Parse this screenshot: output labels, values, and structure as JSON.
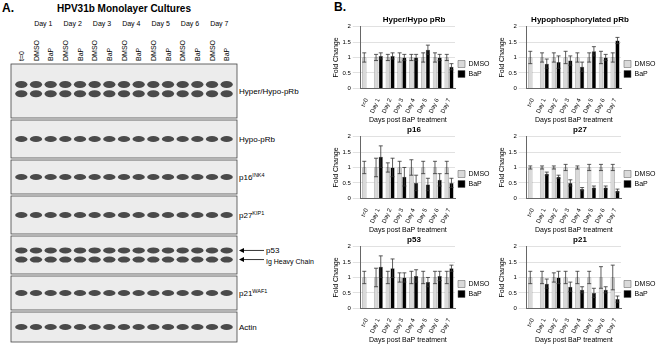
{
  "figure": {
    "panel_a": {
      "label": "A.",
      "title": "HPV31b Monolayer Cultures",
      "lanes": [
        "t=0",
        "DMSO",
        "BaP",
        "DMSO",
        "BaP",
        "DMSO",
        "BaP",
        "DMSO",
        "BaP",
        "DMSO",
        "BaP",
        "DMSO",
        "BaP",
        "DMSO",
        "BaP"
      ],
      "days": [
        "Day 1",
        "Day 2",
        "Day 3",
        "Day 4",
        "Day 5",
        "Day 6",
        "Day 7"
      ],
      "bands": [
        {
          "label": "Hyper/Hypo-pRb"
        },
        {
          "label": "Hypo-pRb"
        },
        {
          "label": "p16",
          "sup": "INK4"
        },
        {
          "label": "p27",
          "sup": "KIP1"
        },
        {
          "label": "p53",
          "second_label": "Ig Heavy Chain"
        },
        {
          "label": "p21",
          "sup": "WAF1"
        },
        {
          "label": "Actin"
        }
      ]
    },
    "panel_b_label": "B."
  },
  "chart_data": [
    {
      "type": "bar",
      "title": "Hyper/Hypo pRb",
      "categories": [
        "t=0",
        "Day 1",
        "Day 2",
        "Day 3",
        "Day 4",
        "Day 5",
        "Day 6",
        "Day 7"
      ],
      "x_label": "Days post BaP treatment",
      "y_label": "Fold Change",
      "ylim": [
        0,
        2
      ],
      "yticks": [
        0,
        0.5,
        1,
        1.5,
        2
      ],
      "grid": true,
      "legend": "right",
      "series": [
        {
          "name": "DMSO",
          "color": "#d9d9d9",
          "values": [
            1,
            1,
            1,
            1,
            1,
            1,
            1,
            1
          ],
          "errors": [
            0.15,
            0.1,
            0.1,
            0.15,
            0.1,
            0.15,
            0.15,
            0.1
          ]
        },
        {
          "name": "BaP",
          "color": "#000000",
          "values": [
            null,
            1.05,
            1.05,
            1.0,
            1.0,
            1.25,
            1.0,
            0.7
          ],
          "errors": [
            null,
            0.1,
            0.1,
            0.1,
            0.1,
            0.15,
            0.1,
            0.1
          ]
        }
      ]
    },
    {
      "type": "bar",
      "title": "Hypophosphorylated pRb",
      "categories": [
        "t=0",
        "Day 1",
        "Day 2",
        "Day 3",
        "Day 4",
        "Day 5",
        "Day 6",
        "Day 7"
      ],
      "x_label": "Days post BaP treatment",
      "y_label": "Fold Change",
      "ylim": [
        0,
        2
      ],
      "yticks": [
        0,
        0.5,
        1,
        1.5,
        2
      ],
      "grid": true,
      "legend": "right",
      "series": [
        {
          "name": "DMSO",
          "color": "#d9d9d9",
          "values": [
            1,
            1,
            1,
            1,
            1,
            1,
            1,
            1
          ],
          "errors": [
            0.2,
            0.15,
            0.15,
            0.2,
            0.15,
            0.15,
            0.2,
            0.15
          ]
        },
        {
          "name": "BaP",
          "color": "#000000",
          "values": [
            null,
            0.8,
            0.85,
            0.9,
            0.7,
            1.2,
            1.0,
            1.55
          ],
          "errors": [
            null,
            0.15,
            0.2,
            0.15,
            0.15,
            0.15,
            0.1,
            0.1
          ]
        }
      ]
    },
    {
      "type": "bar",
      "title": "p16",
      "categories": [
        "t=0",
        "Day 1",
        "Day 2",
        "Day 3",
        "Day 4",
        "Day 5",
        "Day 6",
        "Day 7"
      ],
      "x_label": "Days post BaP treatment",
      "y_label": "Fold Change",
      "ylim": [
        0,
        2
      ],
      "yticks": [
        0,
        0.5,
        1,
        1.5,
        2
      ],
      "grid": true,
      "legend": "right",
      "series": [
        {
          "name": "DMSO",
          "color": "#d9d9d9",
          "values": [
            1,
            1,
            1,
            1,
            1,
            1,
            1,
            1
          ],
          "errors": [
            0.2,
            0.3,
            0.15,
            0.2,
            0.25,
            0.2,
            0.2,
            0.2
          ]
        },
        {
          "name": "BaP",
          "color": "#000000",
          "values": [
            null,
            1.35,
            1.0,
            0.7,
            0.5,
            0.45,
            0.6,
            0.5
          ],
          "errors": [
            null,
            0.35,
            0.3,
            0.3,
            0.25,
            0.2,
            0.2,
            0.15
          ]
        }
      ]
    },
    {
      "type": "bar",
      "title": "p27",
      "categories": [
        "t=0",
        "Day 1",
        "Day 2",
        "Day 3",
        "Day 4",
        "Day 5",
        "Day 6",
        "Day 7"
      ],
      "x_label": "Days post BaP treatment",
      "y_label": "Fold Change",
      "ylim": [
        0,
        2
      ],
      "yticks": [
        0,
        0.5,
        1,
        1.5,
        2
      ],
      "grid": true,
      "legend": "right",
      "series": [
        {
          "name": "DMSO",
          "color": "#d9d9d9",
          "values": [
            1,
            1,
            1,
            1,
            1,
            1,
            1,
            1
          ],
          "errors": [
            0.05,
            0.05,
            0.05,
            0.1,
            0.05,
            0.1,
            0.1,
            0.1
          ]
        },
        {
          "name": "BaP",
          "color": "#000000",
          "values": [
            null,
            0.8,
            0.7,
            0.5,
            0.3,
            0.35,
            0.35,
            0.25
          ],
          "errors": [
            null,
            0.05,
            0.05,
            0.1,
            0.05,
            0.05,
            0.05,
            0.05
          ]
        }
      ]
    },
    {
      "type": "bar",
      "title": "p53",
      "categories": [
        "t=0",
        "Day 1",
        "Day 2",
        "Day 3",
        "Day 4",
        "Day 5",
        "Day 6",
        "Day 7"
      ],
      "x_label": "Days post BaP treatment",
      "y_label": "Fold Change",
      "ylim": [
        0,
        2
      ],
      "yticks": [
        0,
        0.5,
        1,
        1.5,
        2
      ],
      "grid": true,
      "legend": "right",
      "series": [
        {
          "name": "DMSO",
          "color": "#d9d9d9",
          "values": [
            1,
            1,
            1,
            1,
            1,
            1,
            1,
            1
          ],
          "errors": [
            0.2,
            0.3,
            0.2,
            0.15,
            0.2,
            0.2,
            0.2,
            0.2
          ]
        },
        {
          "name": "BaP",
          "color": "#000000",
          "values": [
            null,
            1.35,
            1.3,
            1.0,
            1.05,
            0.85,
            1.05,
            1.3
          ],
          "errors": [
            null,
            0.35,
            0.3,
            0.15,
            0.2,
            0.15,
            0.15,
            0.1
          ]
        }
      ]
    },
    {
      "type": "bar",
      "title": "p21",
      "categories": [
        "t=0",
        "Day 1",
        "Day 2",
        "Day 3",
        "Day 4",
        "Day 5",
        "Day 6",
        "Day 7"
      ],
      "x_label": "Days post BaP treatment",
      "y_label": "Fold Change",
      "ylim": [
        0,
        2
      ],
      "yticks": [
        0,
        0.5,
        1,
        1.5,
        2
      ],
      "grid": true,
      "legend": "right",
      "series": [
        {
          "name": "DMSO",
          "color": "#d9d9d9",
          "values": [
            1,
            1,
            1,
            1,
            1,
            1,
            1,
            1
          ],
          "errors": [
            0.2,
            0.2,
            0.15,
            0.2,
            0.2,
            0.2,
            0.35,
            0.4
          ]
        },
        {
          "name": "BaP",
          "color": "#000000",
          "values": [
            null,
            0.8,
            1.0,
            0.7,
            0.6,
            0.5,
            0.6,
            0.3
          ],
          "errors": [
            null,
            0.15,
            0.2,
            0.15,
            0.1,
            0.15,
            0.1,
            0.1
          ]
        }
      ]
    }
  ]
}
